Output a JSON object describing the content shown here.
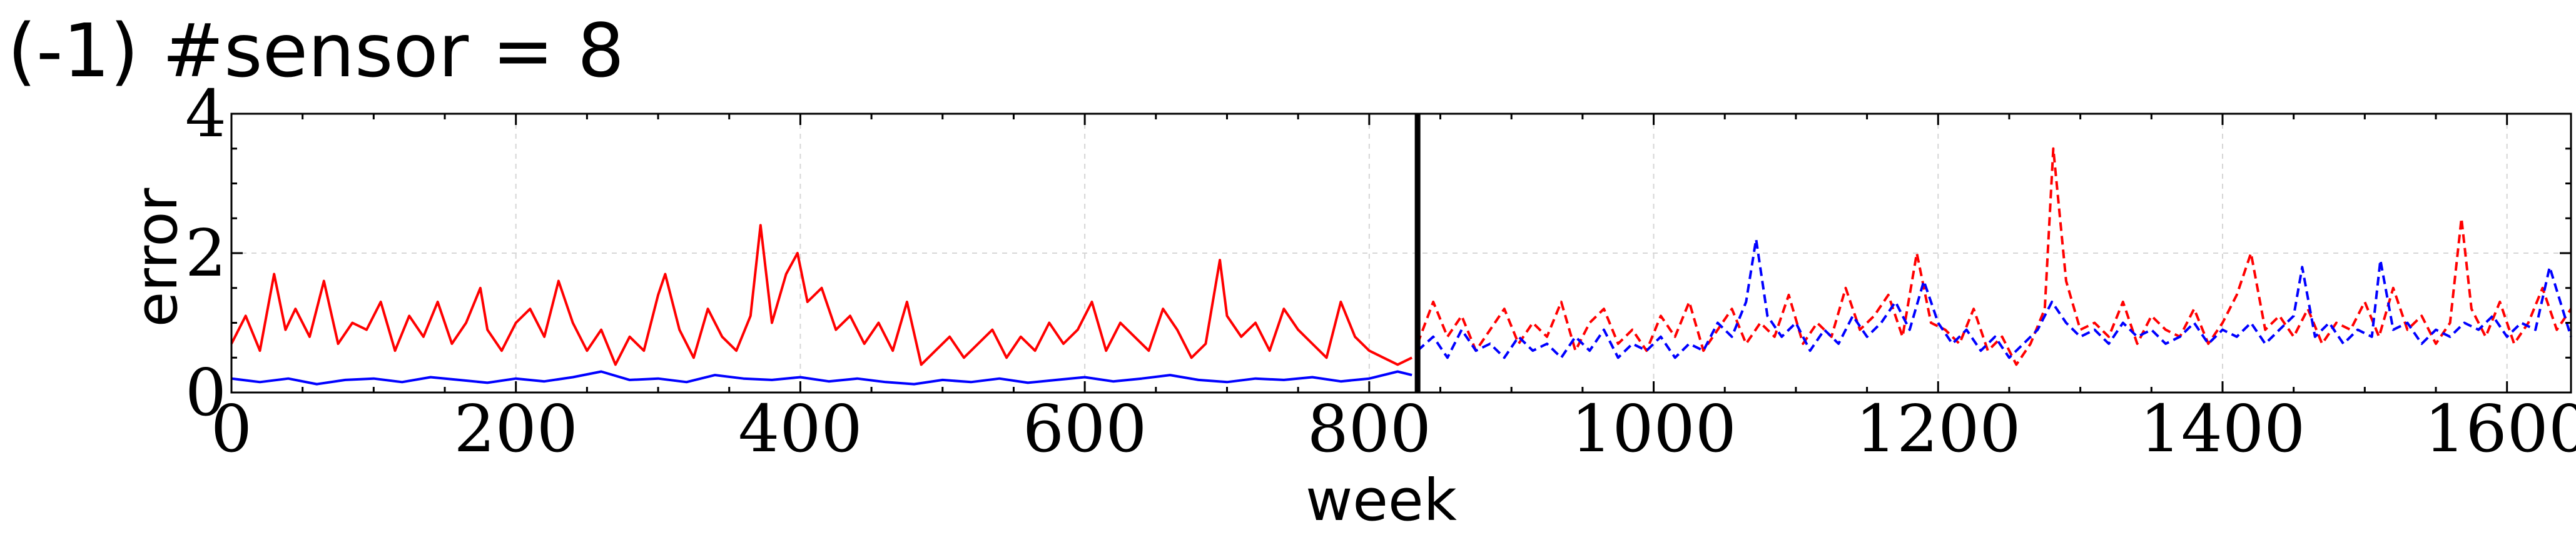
{
  "chart_data": {
    "type": "line",
    "title": "(-1) #sensor = 8",
    "xlabel": "week",
    "ylabel": "error",
    "xlim": [
      0,
      1645
    ],
    "ylim": [
      0,
      4
    ],
    "xticks": [
      0,
      200,
      400,
      600,
      800,
      1000,
      1200,
      1400,
      1600
    ],
    "yticks": [
      0,
      2,
      4
    ],
    "grid": true,
    "divider_x": 834,
    "series": [
      {
        "style": "solid",
        "color": "#ff0000",
        "x": [
          0,
          10,
          20,
          30,
          38,
          45,
          55,
          65,
          75,
          85,
          95,
          105,
          115,
          125,
          135,
          145,
          155,
          165,
          175,
          180,
          190,
          200,
          210,
          220,
          230,
          240,
          250,
          260,
          270,
          280,
          290,
          300,
          305,
          315,
          325,
          335,
          345,
          355,
          365,
          372,
          380,
          390,
          398,
          405,
          415,
          425,
          435,
          445,
          455,
          465,
          475,
          485,
          495,
          505,
          515,
          525,
          535,
          545,
          555,
          565,
          575,
          585,
          595,
          605,
          615,
          625,
          635,
          645,
          655,
          665,
          675,
          685,
          695,
          700,
          710,
          720,
          730,
          740,
          750,
          760,
          770,
          780,
          790,
          800,
          810,
          820,
          830
        ],
        "y": [
          0.7,
          1.1,
          0.6,
          1.7,
          0.9,
          1.2,
          0.8,
          1.6,
          0.7,
          1.0,
          0.9,
          1.3,
          0.6,
          1.1,
          0.8,
          1.3,
          0.7,
          1.0,
          1.5,
          0.9,
          0.6,
          1.0,
          1.2,
          0.8,
          1.6,
          1.0,
          0.6,
          0.9,
          0.4,
          0.8,
          0.6,
          1.4,
          1.7,
          0.9,
          0.5,
          1.2,
          0.8,
          0.6,
          1.1,
          2.4,
          1.0,
          1.7,
          2.0,
          1.3,
          1.5,
          0.9,
          1.1,
          0.7,
          1.0,
          0.6,
          1.3,
          0.4,
          0.6,
          0.8,
          0.5,
          0.7,
          0.9,
          0.5,
          0.8,
          0.6,
          1.0,
          0.7,
          0.9,
          1.3,
          0.6,
          1.0,
          0.8,
          0.6,
          1.2,
          0.9,
          0.5,
          0.7,
          1.9,
          1.1,
          0.8,
          1.0,
          0.6,
          1.2,
          0.9,
          0.7,
          0.5,
          1.3,
          0.8,
          0.6,
          0.5,
          0.4,
          0.5
        ]
      },
      {
        "style": "solid",
        "color": "#0000ff",
        "x": [
          0,
          20,
          40,
          60,
          80,
          100,
          120,
          140,
          160,
          180,
          200,
          220,
          240,
          260,
          280,
          300,
          320,
          340,
          360,
          380,
          400,
          420,
          440,
          460,
          480,
          500,
          520,
          540,
          560,
          580,
          600,
          620,
          640,
          660,
          680,
          700,
          720,
          740,
          760,
          780,
          800,
          820,
          830
        ],
        "y": [
          0.2,
          0.15,
          0.2,
          0.12,
          0.18,
          0.2,
          0.15,
          0.22,
          0.18,
          0.14,
          0.2,
          0.16,
          0.22,
          0.3,
          0.18,
          0.2,
          0.15,
          0.25,
          0.2,
          0.18,
          0.22,
          0.16,
          0.2,
          0.15,
          0.12,
          0.18,
          0.15,
          0.2,
          0.14,
          0.18,
          0.22,
          0.16,
          0.2,
          0.25,
          0.18,
          0.15,
          0.2,
          0.18,
          0.22,
          0.16,
          0.2,
          0.3,
          0.25
        ]
      },
      {
        "style": "dashed",
        "color": "#ff0000",
        "x": [
          834,
          845,
          855,
          865,
          875,
          885,
          895,
          905,
          915,
          925,
          935,
          945,
          955,
          965,
          975,
          985,
          995,
          1005,
          1015,
          1025,
          1035,
          1045,
          1055,
          1065,
          1075,
          1085,
          1095,
          1105,
          1115,
          1125,
          1135,
          1145,
          1155,
          1165,
          1175,
          1185,
          1195,
          1205,
          1215,
          1225,
          1235,
          1245,
          1255,
          1265,
          1275,
          1281,
          1290,
          1300,
          1310,
          1320,
          1330,
          1340,
          1350,
          1360,
          1370,
          1380,
          1390,
          1400,
          1410,
          1420,
          1430,
          1440,
          1450,
          1460,
          1470,
          1480,
          1490,
          1500,
          1510,
          1520,
          1530,
          1540,
          1550,
          1560,
          1568,
          1575,
          1585,
          1595,
          1605,
          1615,
          1625,
          1635,
          1645
        ],
        "y": [
          0.7,
          1.3,
          0.8,
          1.1,
          0.6,
          0.9,
          1.2,
          0.7,
          1.0,
          0.8,
          1.3,
          0.6,
          1.0,
          1.2,
          0.7,
          0.9,
          0.6,
          1.1,
          0.8,
          1.3,
          0.6,
          0.9,
          1.2,
          0.7,
          1.0,
          0.8,
          1.4,
          0.7,
          1.0,
          0.8,
          1.5,
          0.9,
          1.1,
          1.4,
          0.8,
          2.0,
          1.0,
          0.9,
          0.7,
          1.2,
          0.6,
          0.8,
          0.4,
          0.7,
          1.2,
          3.5,
          1.6,
          0.9,
          1.0,
          0.8,
          1.3,
          0.7,
          1.1,
          0.9,
          0.8,
          1.2,
          0.7,
          1.0,
          1.4,
          2.0,
          0.9,
          1.1,
          0.8,
          1.2,
          0.7,
          1.0,
          0.9,
          1.3,
          0.8,
          1.5,
          0.9,
          1.1,
          0.7,
          1.0,
          2.5,
          1.2,
          0.8,
          1.3,
          0.7,
          1.0,
          1.5,
          0.9,
          1.2
        ]
      },
      {
        "style": "dashed",
        "color": "#0000ff",
        "x": [
          834,
          845,
          855,
          865,
          875,
          885,
          895,
          905,
          915,
          925,
          935,
          945,
          955,
          965,
          975,
          985,
          995,
          1005,
          1015,
          1025,
          1035,
          1045,
          1055,
          1065,
          1072,
          1080,
          1090,
          1100,
          1110,
          1120,
          1130,
          1140,
          1150,
          1160,
          1170,
          1180,
          1190,
          1200,
          1210,
          1220,
          1230,
          1240,
          1250,
          1260,
          1270,
          1280,
          1290,
          1300,
          1310,
          1320,
          1330,
          1340,
          1350,
          1360,
          1370,
          1380,
          1390,
          1400,
          1410,
          1420,
          1430,
          1440,
          1450,
          1456,
          1465,
          1475,
          1485,
          1495,
          1505,
          1511,
          1520,
          1530,
          1540,
          1550,
          1560,
          1570,
          1580,
          1590,
          1600,
          1610,
          1620,
          1630,
          1645
        ],
        "y": [
          0.6,
          0.8,
          0.5,
          0.9,
          0.6,
          0.7,
          0.5,
          0.8,
          0.6,
          0.7,
          0.5,
          0.8,
          0.6,
          0.9,
          0.5,
          0.7,
          0.6,
          0.8,
          0.5,
          0.7,
          0.6,
          1.0,
          0.8,
          1.3,
          2.2,
          1.1,
          0.8,
          1.0,
          0.6,
          0.9,
          0.7,
          1.1,
          0.8,
          1.0,
          1.3,
          0.9,
          1.6,
          1.0,
          0.7,
          0.9,
          0.6,
          0.8,
          0.5,
          0.7,
          0.9,
          1.3,
          1.0,
          0.8,
          0.9,
          0.7,
          1.0,
          0.8,
          0.9,
          0.7,
          0.8,
          1.0,
          0.7,
          0.9,
          0.8,
          1.0,
          0.7,
          0.9,
          1.1,
          1.8,
          0.8,
          1.0,
          0.7,
          0.9,
          0.8,
          1.9,
          0.9,
          1.0,
          0.7,
          0.9,
          0.8,
          1.0,
          0.9,
          1.1,
          0.8,
          1.0,
          0.9,
          1.8,
          0.8
        ]
      }
    ]
  }
}
